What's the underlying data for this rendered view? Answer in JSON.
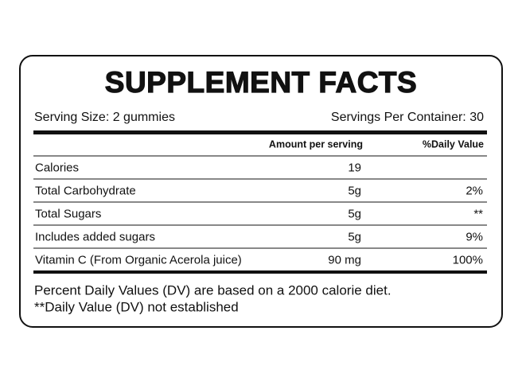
{
  "header": {
    "title": "SUPPLEMENT FACTS",
    "serving_size": "Serving Size: 2 gummies",
    "servings_per_container": "Servings Per Container: 30"
  },
  "table": {
    "columns": [
      "Amount per serving",
      "%Daily Value"
    ],
    "rows": [
      {
        "name": "Calories",
        "amount": "19"
      },
      {
        "name": "Total Carbohydrate",
        "amount": "5g",
        "daily_value": "2%"
      },
      {
        "name": "Total Sugars",
        "amount": "5g",
        "daily_value": "**"
      },
      {
        "name": "Includes added sugars",
        "amount": "5g",
        "daily_value": "9%"
      },
      {
        "name": "Vitamin C (From Organic Acerola juice)",
        "amount": "90 mg",
        "daily_value": "100%"
      }
    ]
  },
  "footnotes": [
    "Percent Daily Values (DV) are based on a 2000 calorie diet.",
    "**Daily Value (DV) not established"
  ]
}
